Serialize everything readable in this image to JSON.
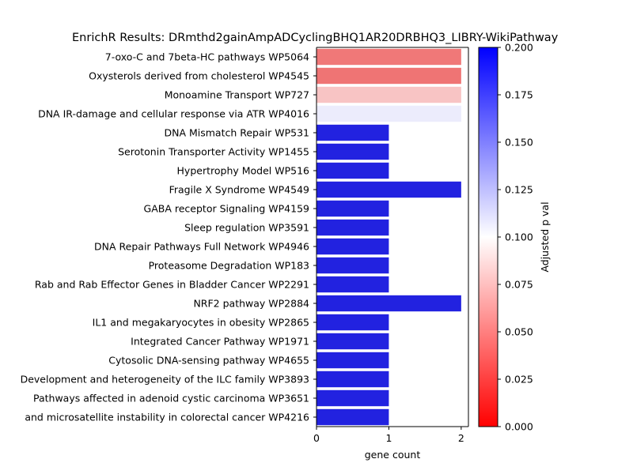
{
  "chart_data": {
    "type": "bar",
    "orientation": "horizontal",
    "title": "EnrichR Results: DRmthd2gainAmpADCyclingBHQ1AR20DRBHQ3_LIBRY-WikiPathway",
    "xlabel": "gene count",
    "ylabel": "",
    "xlim": [
      0,
      2.1
    ],
    "xticks": [
      "0",
      "1",
      "2"
    ],
    "categories": [
      "7-oxo-C and 7beta-HC pathways WP5064",
      "Oxysterols derived from cholesterol WP4545",
      "Monoamine Transport WP727",
      "DNA IR-damage and cellular response via ATR WP4016",
      "DNA Mismatch Repair WP531",
      "Serotonin Transporter Activity WP1455",
      "Hypertrophy Model WP516",
      "Fragile X Syndrome  WP4549",
      "GABA receptor Signaling WP4159",
      "Sleep regulation WP3591",
      "DNA Repair Pathways Full Network WP4946",
      "Proteasome Degradation WP183",
      "Rab and Rab Effector Genes in Bladder Cancer WP2291",
      "NRF2 pathway WP2884",
      "IL1 and megakaryocytes in obesity WP2865",
      "Integrated Cancer Pathway WP1971",
      "Cytosolic DNA-sensing pathway WP4655",
      "Development and heterogeneity of the ILC family WP3893",
      "Pathways affected in adenoid cystic carcinoma WP3651",
      "and microsatellite instability in colorectal cancer  WP4216"
    ],
    "values": [
      2,
      2,
      2,
      2,
      1,
      1,
      1,
      2,
      1,
      1,
      1,
      1,
      1,
      2,
      1,
      1,
      1,
      1,
      1,
      1
    ],
    "bar_colors": [
      "#f07878",
      "#ef7474",
      "#f8c4c4",
      "#ececfc",
      "#2222e0",
      "#2222e0",
      "#2222e0",
      "#2222e0",
      "#2222e0",
      "#2222e0",
      "#2222e0",
      "#2222e0",
      "#2222e0",
      "#2222e0",
      "#2222e0",
      "#2222e0",
      "#2222e0",
      "#2222e0",
      "#2222e0",
      "#2222e0"
    ],
    "colorbar": {
      "label": "Adjusted p val",
      "range": [
        0,
        0.2
      ],
      "ticks": [
        "0.000",
        "0.025",
        "0.050",
        "0.075",
        "0.100",
        "0.125",
        "0.150",
        "0.175",
        "0.200"
      ],
      "colors": [
        "#ff0000",
        "#ffffff",
        "#0000ff"
      ]
    },
    "grid": false,
    "legend": "none"
  }
}
